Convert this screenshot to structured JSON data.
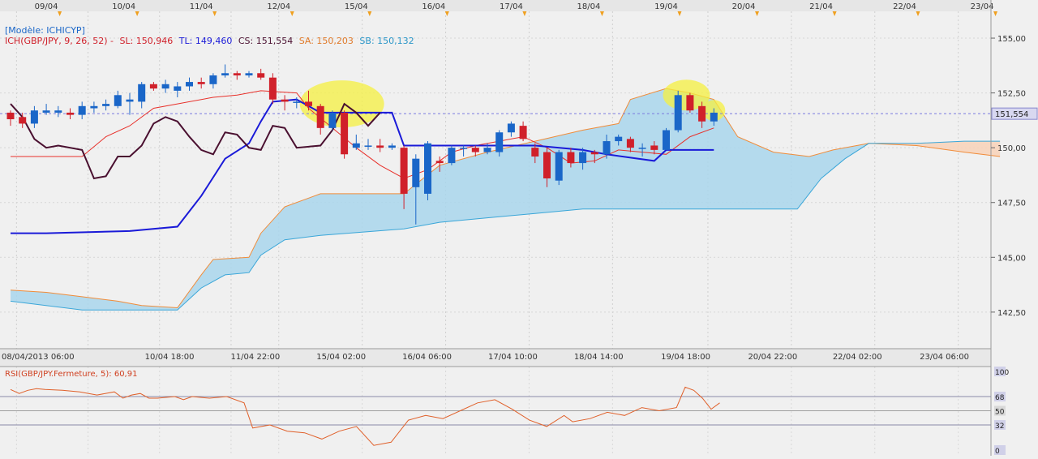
{
  "top_dates": [
    "09/04",
    "10/04",
    "11/04",
    "12/04",
    "15/04",
    "16/04",
    "17/04",
    "18/04",
    "19/04",
    "20/04",
    "21/04",
    "22/04",
    "23/04"
  ],
  "legend": {
    "model": "[Modèle: ICHICYP]",
    "ich": "ICH(GBP/JPY, 9, 26, 52) -",
    "sl": "SL: 150,946",
    "tl": "TL: 149,460",
    "cs": "CS: 151,554",
    "sa": "SA: 150,203",
    "sb": "SB: 150,132"
  },
  "price_axis": {
    "ticks": [
      {
        "v": 142.5,
        "label": "142,50"
      },
      {
        "v": 145,
        "label": "145,00"
      },
      {
        "v": 147.5,
        "label": "147,50"
      },
      {
        "v": 150,
        "label": "150,00"
      },
      {
        "v": 152.5,
        "label": "152,50"
      },
      {
        "v": 155,
        "label": "155,00"
      }
    ],
    "current_label": "151,554",
    "current_value": 151.554,
    "range": [
      141.2,
      156.0
    ]
  },
  "time_axis_labels": [
    "08/04/2013 06:00",
    "10/04 18:00",
    "11/04 22:00",
    "15/04 02:00",
    "16/04 06:00",
    "17/04 10:00",
    "18/04 14:00",
    "19/04 18:00",
    "20/04 22:00",
    "22/04 02:00",
    "23/04 06:00"
  ],
  "rsi": {
    "title": "RSI(GBP/JPY.Fermeture, 5): 60,91",
    "levels": [
      {
        "v": 100,
        "label": "100"
      },
      {
        "v": 68,
        "label": "68"
      },
      {
        "v": 50,
        "label": "50"
      },
      {
        "v": 32,
        "label": "32"
      },
      {
        "v": 0,
        "label": "0"
      }
    ]
  },
  "colors": {
    "bullish": "#1a66c8",
    "bearish": "#d0202a",
    "tenkan": "#e8302a",
    "kijun": "#1a1ad8",
    "chikou": "#4a1030",
    "cloud_bull": "#a9d6ec",
    "cloud_bear": "#f8d2b8",
    "ssa": "#f08c3a",
    "ssb": "#3aa6d8",
    "rsi_line": "#e0602a",
    "highlight": "#f5f040"
  },
  "chart_data": {
    "type": "candlestick",
    "instrument": "GBP/JPY",
    "candles": [
      [
        0,
        151.6,
        151.3,
        151.7,
        151.0
      ],
      [
        1,
        151.4,
        151.1,
        151.6,
        150.9
      ],
      [
        2,
        151.1,
        151.7,
        151.9,
        150.9
      ],
      [
        3,
        151.6,
        151.7,
        152.0,
        151.5
      ],
      [
        4,
        151.6,
        151.7,
        151.9,
        151.4
      ],
      [
        5,
        151.6,
        151.5,
        151.8,
        151.3
      ],
      [
        6,
        151.5,
        151.9,
        152.1,
        151.3
      ],
      [
        7,
        151.8,
        151.9,
        152.1,
        151.6
      ],
      [
        8,
        151.9,
        152.0,
        152.2,
        151.7
      ],
      [
        9,
        151.9,
        152.4,
        152.6,
        151.8
      ],
      [
        10,
        152.1,
        152.2,
        152.5,
        151.5
      ],
      [
        11,
        152.1,
        152.9,
        153.0,
        151.8
      ],
      [
        12,
        152.9,
        152.7,
        153.0,
        152.6
      ],
      [
        13,
        152.7,
        152.9,
        153.1,
        152.5
      ],
      [
        14,
        152.6,
        152.8,
        153.0,
        152.3
      ],
      [
        15,
        152.8,
        153.0,
        153.2,
        152.6
      ],
      [
        16,
        153.0,
        152.9,
        153.2,
        152.7
      ],
      [
        17,
        152.9,
        153.3,
        153.4,
        152.7
      ],
      [
        18,
        153.3,
        153.4,
        153.8,
        153.2
      ],
      [
        19,
        153.4,
        153.3,
        153.5,
        153.1
      ],
      [
        20,
        153.3,
        153.4,
        153.5,
        153.2
      ],
      [
        21,
        153.4,
        153.2,
        153.6,
        153.1
      ],
      [
        22,
        153.2,
        152.2,
        153.4,
        152.0
      ],
      [
        23,
        152.2,
        152.1,
        152.4,
        151.7
      ],
      [
        24,
        152.1,
        152.1,
        152.3,
        151.8
      ],
      [
        25,
        152.1,
        151.9,
        152.6,
        151.7
      ],
      [
        26,
        151.9,
        150.9,
        152.0,
        150.6
      ],
      [
        27,
        150.9,
        151.6,
        151.7,
        150.8
      ],
      [
        28,
        151.6,
        149.7,
        151.7,
        149.5
      ],
      [
        29,
        150.0,
        150.2,
        150.6,
        149.9
      ],
      [
        30,
        150.1,
        150.1,
        150.4,
        149.9
      ],
      [
        31,
        150.1,
        150.0,
        150.4,
        149.8
      ],
      [
        32,
        150.0,
        150.1,
        150.2,
        149.9
      ],
      [
        33,
        150.0,
        147.9,
        150.1,
        147.2
      ],
      [
        34,
        148.2,
        149.5,
        149.7,
        146.5
      ],
      [
        35,
        147.9,
        150.2,
        150.3,
        147.6
      ],
      [
        36,
        149.4,
        149.3,
        149.6,
        148.9
      ],
      [
        37,
        149.3,
        150.0,
        150.1,
        149.2
      ],
      [
        38,
        150.0,
        150.0,
        150.1,
        149.6
      ],
      [
        39,
        150.0,
        149.8,
        150.1,
        149.6
      ],
      [
        40,
        149.8,
        150.0,
        150.2,
        149.7
      ],
      [
        41,
        149.8,
        150.7,
        150.8,
        149.6
      ],
      [
        42,
        150.7,
        151.1,
        151.2,
        150.5
      ],
      [
        43,
        151.0,
        150.4,
        151.2,
        150.3
      ],
      [
        44,
        150.0,
        149.6,
        150.2,
        149.3
      ],
      [
        45,
        149.8,
        148.6,
        150.0,
        148.2
      ],
      [
        46,
        148.5,
        149.8,
        149.9,
        148.3
      ],
      [
        47,
        149.8,
        149.3,
        150.0,
        149.1
      ],
      [
        48,
        149.3,
        149.8,
        150.0,
        149.0
      ],
      [
        49,
        149.8,
        149.7,
        149.9,
        149.3
      ],
      [
        50,
        149.7,
        150.3,
        150.6,
        149.5
      ],
      [
        51,
        150.3,
        150.5,
        150.6,
        150.1
      ],
      [
        52,
        150.4,
        150.0,
        150.5,
        149.8
      ],
      [
        53,
        150.0,
        150.0,
        150.2,
        149.6
      ],
      [
        54,
        150.1,
        149.9,
        150.3,
        149.7
      ],
      [
        55,
        149.9,
        150.8,
        150.9,
        149.9
      ],
      [
        56,
        150.8,
        152.4,
        152.6,
        150.7
      ],
      [
        57,
        152.4,
        151.7,
        152.5,
        151.6
      ],
      [
        58,
        151.9,
        151.2,
        152.1,
        150.9
      ],
      [
        59,
        151.2,
        151.6,
        151.8,
        151.0
      ]
    ],
    "tenkan": [
      [
        0,
        149.6
      ],
      [
        6,
        149.6
      ],
      [
        8,
        150.5
      ],
      [
        10,
        151.0
      ],
      [
        12,
        151.8
      ],
      [
        14,
        152.0
      ],
      [
        17,
        152.3
      ],
      [
        19,
        152.4
      ],
      [
        21,
        152.6
      ],
      [
        24,
        152.5
      ],
      [
        25,
        151.8
      ],
      [
        27,
        150.9
      ],
      [
        29,
        150.0
      ],
      [
        31,
        149.2
      ],
      [
        33,
        148.6
      ],
      [
        35,
        149.0
      ],
      [
        37,
        149.8
      ],
      [
        39,
        150.1
      ],
      [
        41,
        150.3
      ],
      [
        43,
        150.5
      ],
      [
        45,
        150.0
      ],
      [
        47,
        149.3
      ],
      [
        49,
        149.4
      ],
      [
        51,
        149.9
      ],
      [
        53,
        149.8
      ],
      [
        55,
        149.7
      ],
      [
        57,
        150.5
      ],
      [
        59,
        150.9
      ]
    ],
    "kijun": [
      [
        0,
        146.1
      ],
      [
        3,
        146.1
      ],
      [
        10,
        146.2
      ],
      [
        14,
        146.4
      ],
      [
        16,
        147.8
      ],
      [
        18,
        149.5
      ],
      [
        20,
        150.2
      ],
      [
        21,
        151.2
      ],
      [
        22,
        152.1
      ],
      [
        24,
        152.2
      ],
      [
        26,
        151.6
      ],
      [
        32,
        151.6
      ],
      [
        33,
        150.1
      ],
      [
        44,
        150.1
      ],
      [
        48,
        149.9
      ],
      [
        50,
        149.7
      ],
      [
        54,
        149.4
      ],
      [
        55,
        149.9
      ],
      [
        59,
        149.9
      ]
    ],
    "chikou": [
      [
        0,
        152.0
      ],
      [
        1,
        151.4
      ],
      [
        2,
        150.4
      ],
      [
        3,
        150.0
      ],
      [
        4,
        150.1
      ],
      [
        6,
        149.9
      ],
      [
        7,
        148.6
      ],
      [
        8,
        148.7
      ],
      [
        9,
        149.6
      ],
      [
        10,
        149.6
      ],
      [
        11,
        150.1
      ],
      [
        12,
        151.1
      ],
      [
        13,
        151.4
      ],
      [
        14,
        151.2
      ],
      [
        15,
        150.5
      ],
      [
        16,
        149.9
      ],
      [
        17,
        149.7
      ],
      [
        18,
        150.7
      ],
      [
        19,
        150.6
      ],
      [
        20,
        150.0
      ],
      [
        21,
        149.9
      ],
      [
        22,
        151.0
      ],
      [
        23,
        150.9
      ],
      [
        24,
        150.0
      ],
      [
        26,
        150.1
      ],
      [
        27,
        150.8
      ],
      [
        28,
        152.0
      ],
      [
        29,
        151.6
      ],
      [
        30,
        151.0
      ],
      [
        31,
        151.6
      ]
    ],
    "senkou_a": [
      [
        0,
        143.5
      ],
      [
        3,
        143.4
      ],
      [
        6,
        143.2
      ],
      [
        9,
        143.0
      ],
      [
        11,
        142.8
      ],
      [
        14,
        142.7
      ],
      [
        16,
        144.2
      ],
      [
        17,
        144.9
      ],
      [
        20,
        145.0
      ],
      [
        21,
        146.1
      ],
      [
        23,
        147.3
      ],
      [
        26,
        147.9
      ],
      [
        33,
        147.9
      ],
      [
        36,
        149.2
      ],
      [
        40,
        149.8
      ],
      [
        44,
        150.3
      ],
      [
        48,
        150.8
      ],
      [
        51,
        151.1
      ],
      [
        52,
        152.2
      ],
      [
        55,
        152.7
      ],
      [
        57,
        152.5
      ],
      [
        59,
        152.2
      ],
      [
        61,
        150.5
      ],
      [
        64,
        149.8
      ],
      [
        67,
        149.6
      ],
      [
        69,
        149.9
      ],
      [
        72,
        150.2
      ],
      [
        76,
        150.1
      ],
      [
        80,
        149.8
      ],
      [
        83,
        149.6
      ]
    ],
    "senkou_b": [
      [
        0,
        143.0
      ],
      [
        6,
        142.6
      ],
      [
        9,
        142.6
      ],
      [
        14,
        142.6
      ],
      [
        16,
        143.6
      ],
      [
        18,
        144.2
      ],
      [
        20,
        144.3
      ],
      [
        21,
        145.1
      ],
      [
        23,
        145.8
      ],
      [
        26,
        146.0
      ],
      [
        33,
        146.3
      ],
      [
        36,
        146.6
      ],
      [
        40,
        146.8
      ],
      [
        44,
        147.0
      ],
      [
        48,
        147.2
      ],
      [
        50,
        147.2
      ],
      [
        60,
        147.2
      ],
      [
        66,
        147.2
      ],
      [
        68,
        148.6
      ],
      [
        70,
        149.5
      ],
      [
        72,
        150.2
      ],
      [
        76,
        150.2
      ],
      [
        80,
        150.3
      ],
      [
        83,
        150.3
      ]
    ],
    "rsi": [
      [
        0,
        77
      ],
      [
        1,
        72
      ],
      [
        2,
        76
      ],
      [
        3,
        78
      ],
      [
        4,
        77
      ],
      [
        6,
        76
      ],
      [
        8,
        74
      ],
      [
        10,
        70
      ],
      [
        12,
        74
      ],
      [
        13,
        66
      ],
      [
        14,
        70
      ],
      [
        15,
        72
      ],
      [
        16,
        66
      ],
      [
        17,
        66
      ],
      [
        19,
        68
      ],
      [
        20,
        64
      ],
      [
        21,
        68
      ],
      [
        23,
        66
      ],
      [
        25,
        68
      ],
      [
        27,
        60
      ],
      [
        28,
        28
      ],
      [
        30,
        32
      ],
      [
        32,
        24
      ],
      [
        34,
        22
      ],
      [
        36,
        14
      ],
      [
        38,
        24
      ],
      [
        40,
        30
      ],
      [
        42,
        6
      ],
      [
        44,
        10
      ],
      [
        46,
        38
      ],
      [
        48,
        44
      ],
      [
        50,
        40
      ],
      [
        52,
        50
      ],
      [
        54,
        60
      ],
      [
        56,
        64
      ],
      [
        58,
        52
      ],
      [
        60,
        38
      ],
      [
        62,
        30
      ],
      [
        64,
        44
      ],
      [
        65,
        36
      ],
      [
        67,
        40
      ],
      [
        69,
        48
      ],
      [
        71,
        44
      ],
      [
        73,
        54
      ],
      [
        75,
        50
      ],
      [
        77,
        54
      ],
      [
        78,
        80
      ],
      [
        79,
        76
      ],
      [
        80,
        66
      ],
      [
        81,
        52
      ],
      [
        82,
        60
      ]
    ]
  }
}
